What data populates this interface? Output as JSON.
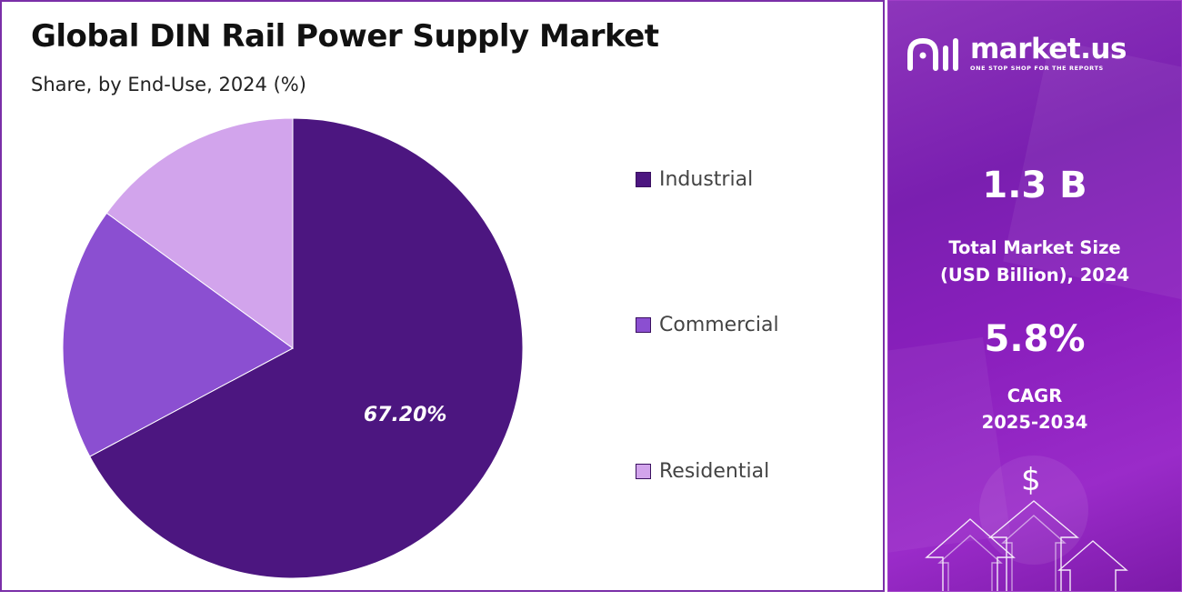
{
  "chart_data": {
    "type": "pie",
    "title": "Global DIN Rail Power Supply Market",
    "subtitle": "Share, by End-Use, 2024 (%)",
    "categories": [
      "Industrial",
      "Commercial",
      "Residential"
    ],
    "values": [
      67.2,
      17.8,
      15.0
    ],
    "data_labels": [
      "67.20%",
      "",
      ""
    ],
    "colors": [
      "#4c1680",
      "#8b4fd1",
      "#d2a4ec"
    ],
    "legend_position": "right"
  },
  "sidebar": {
    "brand": {
      "name": "market.us",
      "tagline": "ONE STOP SHOP FOR THE REPORTS"
    },
    "market_size": {
      "value": "1.3 B",
      "label_line1": "Total Market Size",
      "label_line2": "(USD Billion), 2024"
    },
    "cagr": {
      "value": "5.8%",
      "label_line1": "CAGR",
      "label_line2": "2025-2034"
    },
    "dollar_symbol": "$",
    "background_color": "#8a22bd"
  }
}
